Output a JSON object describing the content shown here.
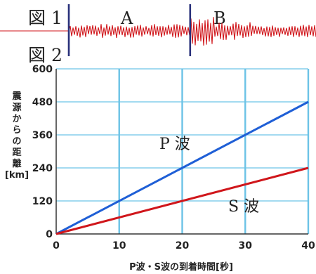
{
  "figure1": {
    "label": "図 1",
    "phase_a": "A",
    "phase_b": "B",
    "seismogram_color": "#d0161b",
    "marker_color": "#28307a",
    "marker_times": [
      2,
      20
    ]
  },
  "figure2": {
    "label": "図 2"
  },
  "chart_data": {
    "type": "line",
    "xlabel": "P波・S波の到着時間[秒]",
    "ylabel_lines": [
      "震",
      "源",
      "か",
      "ら",
      "の",
      "距",
      "離",
      "[km]"
    ],
    "xlim": [
      0,
      40
    ],
    "ylim": [
      0,
      600
    ],
    "xticks": [
      "0",
      "10",
      "20",
      "30",
      "40"
    ],
    "yticks": [
      "0",
      "120",
      "240",
      "360",
      "480",
      "600"
    ],
    "grid": true,
    "grid_color": "#6cc3e6",
    "series": [
      {
        "name": "P 波",
        "color": "#1f5fd6",
        "x": [
          0,
          40
        ],
        "y": [
          0,
          480
        ]
      },
      {
        "name": "S 波",
        "color": "#d0161b",
        "x": [
          0,
          40
        ],
        "y": [
          0,
          240
        ]
      }
    ]
  }
}
